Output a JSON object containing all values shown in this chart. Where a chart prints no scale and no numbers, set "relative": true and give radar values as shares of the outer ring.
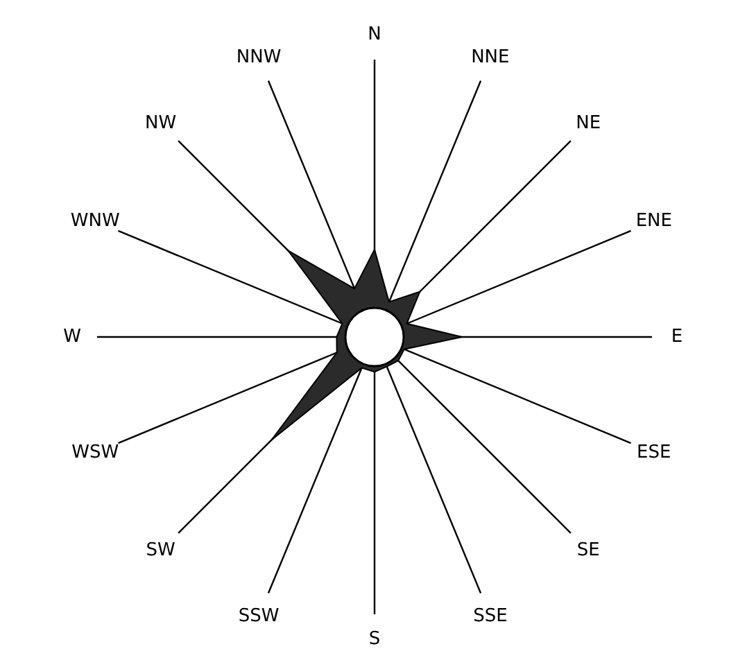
{
  "chart_data": {
    "type": "radar",
    "relative": true,
    "categories": [
      "N",
      "NNE",
      "NE",
      "ENE",
      "E",
      "ESE",
      "SE",
      "SSE",
      "S",
      "SSW",
      "SW",
      "WSW",
      "W",
      "WNW",
      "NW",
      "NNW"
    ],
    "values": [
      3.0,
      1.3,
      2.2,
      1.2,
      3.0,
      1.1,
      1.15,
      1.1,
      1.2,
      1.15,
      5.0,
      1.4,
      1.3,
      1.2,
      4.2,
      1.8
    ],
    "color": "#2b2b2b"
  }
}
